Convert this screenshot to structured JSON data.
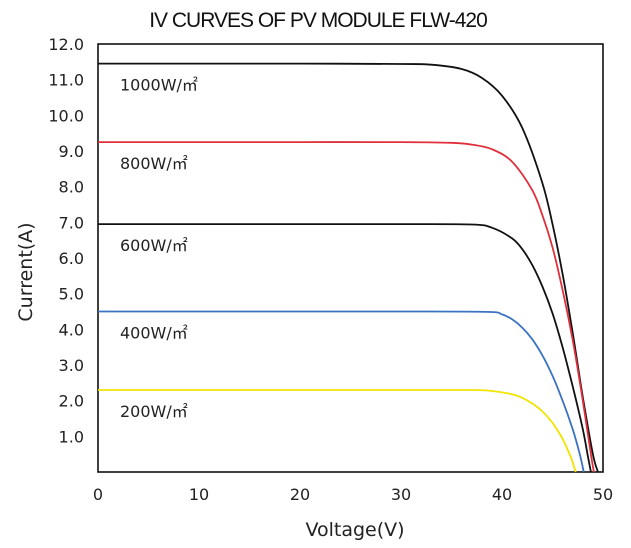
{
  "chart_data": {
    "type": "line",
    "title": "IV CURVES OF PV MODULE FLW-420",
    "xlabel": "Voltage(V)",
    "ylabel": "Current(A)",
    "xlim": [
      0,
      50
    ],
    "ylim": [
      0,
      12
    ],
    "x_ticks": [
      "0",
      "10",
      "20",
      "30",
      "40",
      "50"
    ],
    "y_ticks": [
      "1.0",
      "2.0",
      "3.0",
      "4.0",
      "5.0",
      "6.0",
      "7.0",
      "8.0",
      "9.0",
      "10.0",
      "11.0",
      "12.0"
    ],
    "grid": false,
    "series": [
      {
        "name": "1000W/㎡",
        "color": "#111111",
        "x": [
          0,
          10,
          20,
          30,
          33,
          36,
          38,
          40,
          42,
          44,
          45,
          46,
          47,
          48,
          49,
          49.5
        ],
        "y": [
          11.45,
          11.45,
          11.45,
          11.44,
          11.42,
          11.3,
          11.05,
          10.55,
          9.65,
          8.1,
          6.95,
          5.55,
          3.9,
          2.1,
          0.5,
          0
        ]
      },
      {
        "name": "800W/㎡",
        "color": "#e0303c",
        "x": [
          0,
          10,
          20,
          30,
          35,
          37,
          39,
          41,
          43,
          44,
          45,
          46,
          47,
          48,
          48.8,
          49.1
        ],
        "y": [
          9.25,
          9.25,
          9.25,
          9.25,
          9.23,
          9.18,
          9.05,
          8.7,
          7.9,
          7.2,
          6.3,
          5.1,
          3.7,
          2.0,
          0.5,
          0
        ]
      },
      {
        "name": "600W/㎡",
        "color": "#111111",
        "x": [
          0,
          10,
          20,
          30,
          37,
          39,
          41,
          42,
          43,
          44,
          45,
          46,
          47,
          48,
          48.5,
          48.8
        ],
        "y": [
          6.95,
          6.95,
          6.95,
          6.95,
          6.94,
          6.85,
          6.55,
          6.25,
          5.8,
          5.2,
          4.45,
          3.5,
          2.4,
          1.2,
          0.45,
          0
        ]
      },
      {
        "name": "400W/㎡",
        "color": "#3a72c4",
        "x": [
          0,
          10,
          20,
          30,
          38.5,
          40,
          41,
          42,
          43,
          44,
          45,
          46,
          47,
          47.7,
          48.1
        ],
        "y": [
          4.5,
          4.5,
          4.5,
          4.5,
          4.49,
          4.42,
          4.28,
          4.05,
          3.72,
          3.27,
          2.7,
          2.0,
          1.2,
          0.5,
          0
        ]
      },
      {
        "name": "200W/㎡",
        "color": "#f0e400",
        "x": [
          0,
          10,
          20,
          30,
          37,
          39,
          41,
          42,
          43,
          44,
          45,
          46,
          46.8,
          47.3
        ],
        "y": [
          2.3,
          2.3,
          2.3,
          2.3,
          2.3,
          2.27,
          2.18,
          2.08,
          1.92,
          1.7,
          1.38,
          0.93,
          0.42,
          0
        ]
      }
    ]
  }
}
